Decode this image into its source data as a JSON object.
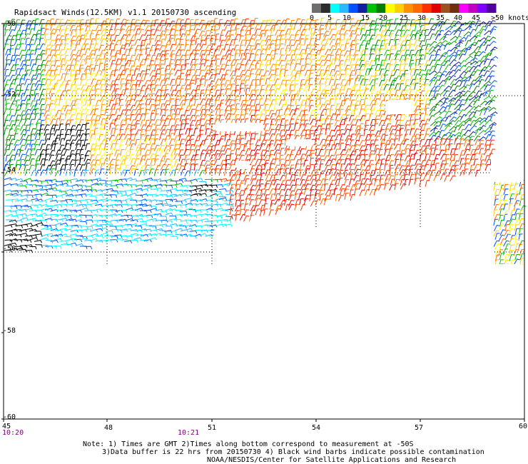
{
  "title": "Rapidsact Winds(12.5KM) v1.1 20150730 ascending",
  "legend": {
    "ticks": [
      "0",
      "5",
      "10",
      "15",
      "20",
      "25",
      "30",
      "35",
      "40",
      "45",
      ">50 knots"
    ],
    "colors": [
      "#6e6e6e",
      "#2c2c2c",
      "#00ffff",
      "#2ab8ff",
      "#0050ff",
      "#1020a0",
      "#00c000",
      "#008000",
      "#ffff00",
      "#ffd000",
      "#ff9000",
      "#ff6a00",
      "#ff3000",
      "#e00000",
      "#a05020",
      "#703010",
      "#ff00ff",
      "#c000c0",
      "#8000ff",
      "#5000a0"
    ]
  },
  "axes": {
    "x_ticks": [
      "45",
      "48",
      "51",
      "54",
      "57",
      "60"
    ],
    "y_ticks": [
      "-50",
      "-52",
      "-54",
      "-56",
      "-58",
      "-60"
    ],
    "times": [
      "10:20",
      "10:21"
    ]
  },
  "notes": {
    "line1": "Note: 1) Times are GMT 2)Times along bottom correspond to measurement at -50S",
    "line2": "3)Data buffer is 22 hrs from 20150730 4) Black wind barbs indicate possible contamination",
    "line3": "NOAA/NESDIS/Center for Satellite Applications and Research"
  }
}
